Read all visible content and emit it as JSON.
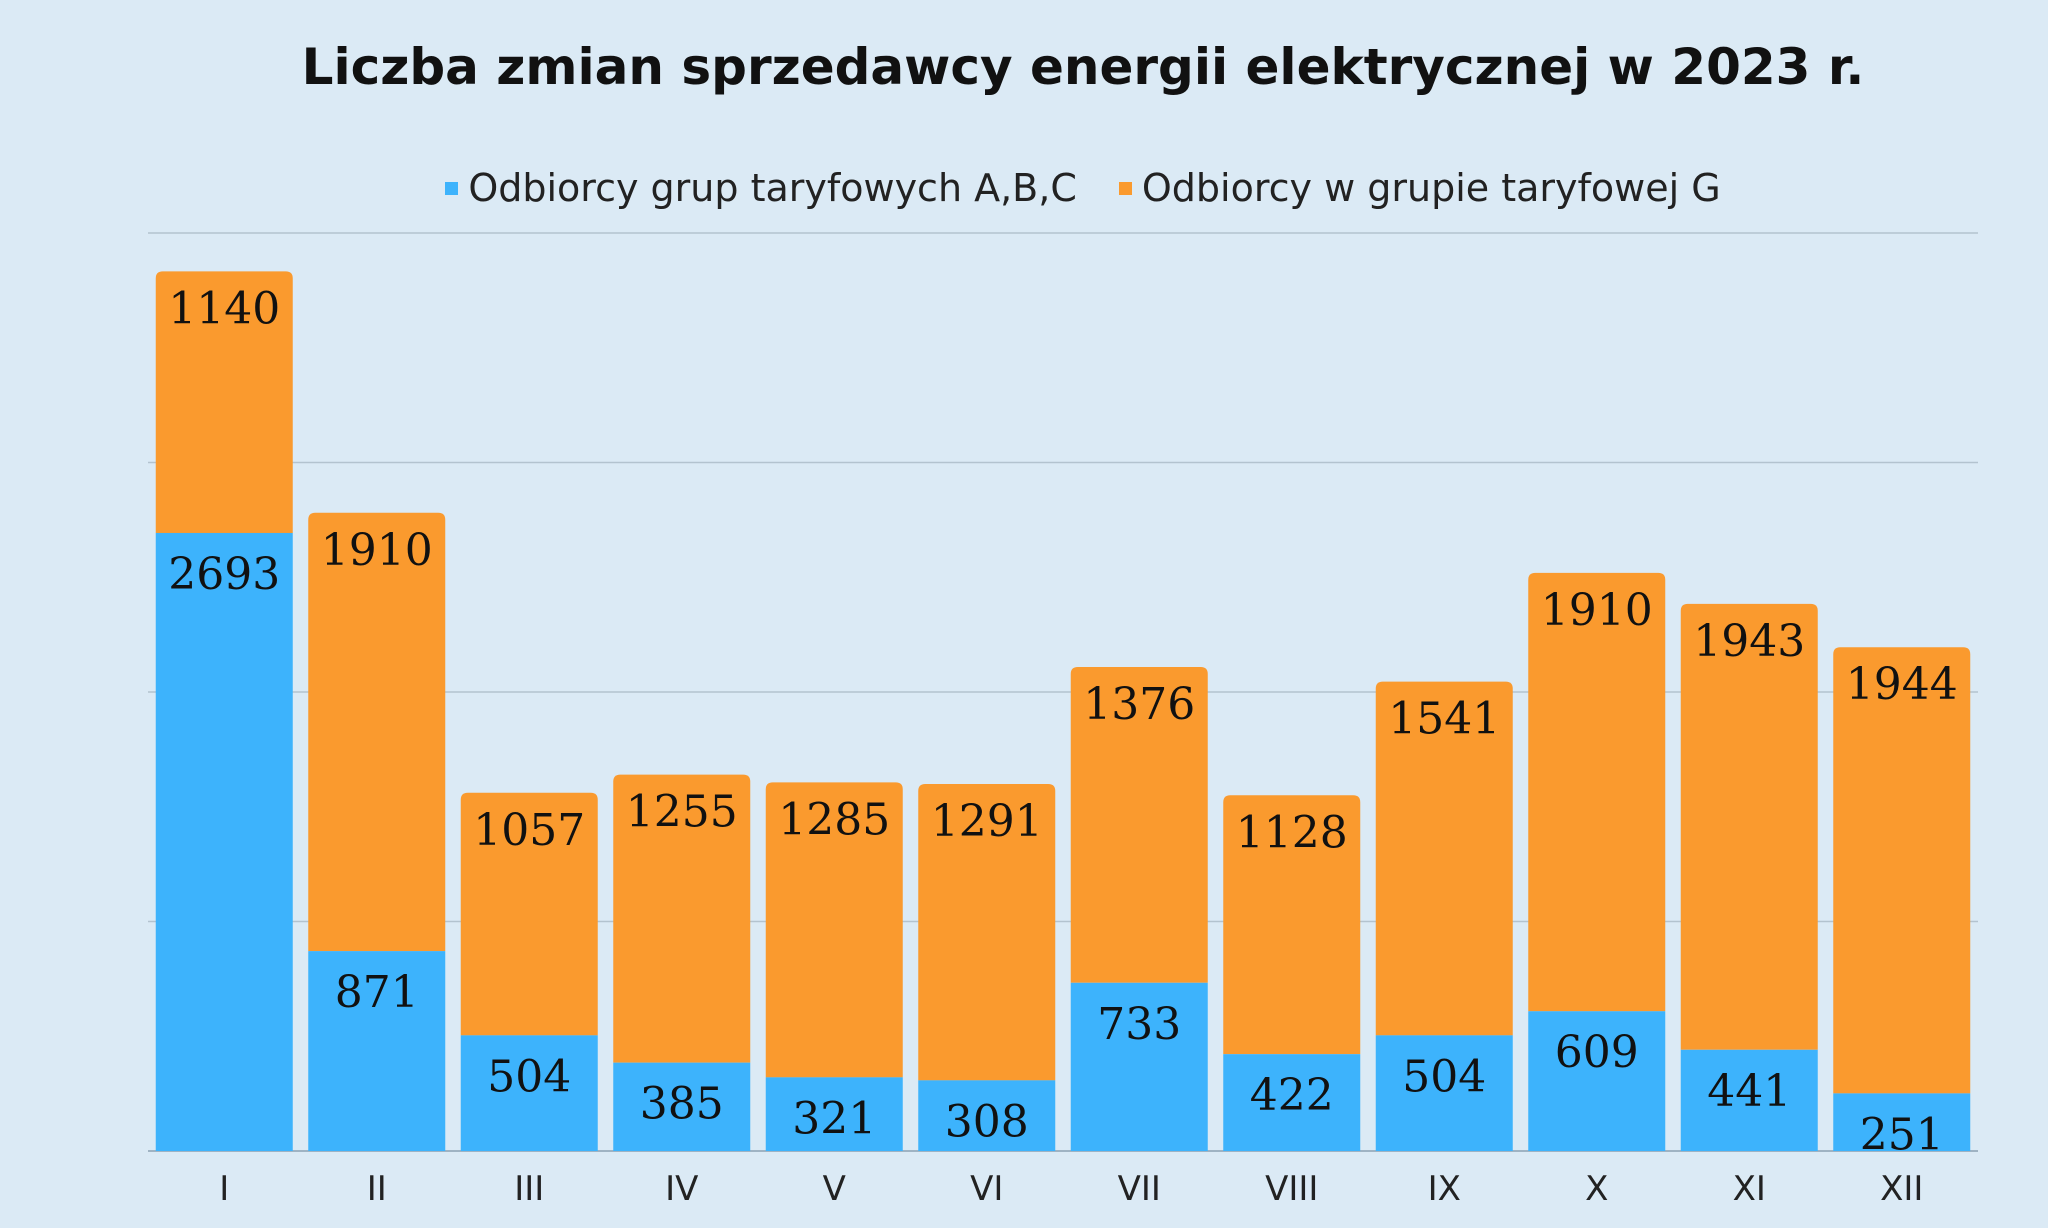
{
  "chart_data": {
    "type": "bar",
    "stacked": true,
    "title": "Liczba zmian sprzedawcy energii elektrycznej w 2023 r.",
    "categories": [
      "I",
      "II",
      "III",
      "IV",
      "V",
      "VI",
      "VII",
      "VIII",
      "IX",
      "X",
      "XI",
      "XII"
    ],
    "series": [
      {
        "name": "Odbiorcy grup taryfowych A,B,C",
        "color": "#3db3fc",
        "values": [
          2693,
          871,
          504,
          385,
          321,
          308,
          733,
          422,
          504,
          609,
          441,
          251
        ]
      },
      {
        "name": "Odbiorcy w grupie taryfowej G",
        "color": "#fa9a2e",
        "values": [
          1140,
          1910,
          1057,
          1255,
          1285,
          1291,
          1376,
          1128,
          1541,
          1910,
          1943,
          1944
        ]
      }
    ],
    "ylim": [
      0,
      4000
    ],
    "y_gridlines": [
      0,
      1000,
      2000,
      3000,
      4000
    ],
    "grid": true,
    "y_tick_labels_visible": false,
    "legend_position": "top-center",
    "data_labels": true
  }
}
